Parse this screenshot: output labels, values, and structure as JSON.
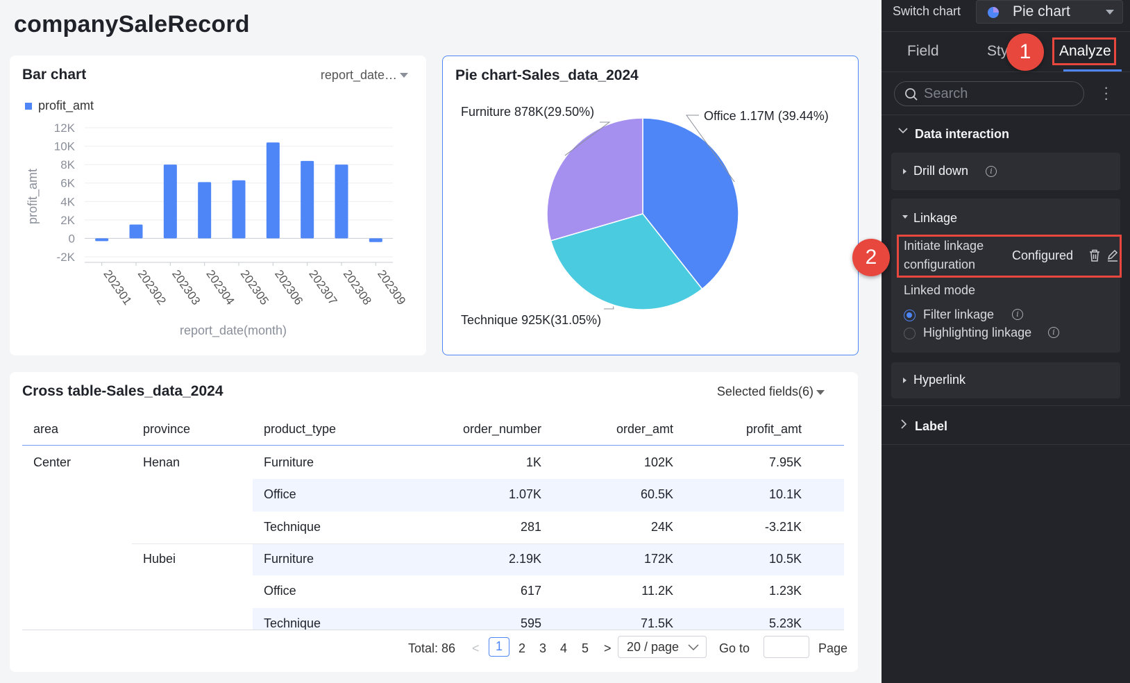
{
  "page": {
    "title": "companySaleRecord"
  },
  "bar_card": {
    "title": "Bar chart",
    "dimension_select": "report_date…",
    "legend": "profit_amt",
    "xlabel": "report_date(month)",
    "ylabel": "profit_amt"
  },
  "pie_card": {
    "title": "Pie chart-Sales_data_2024"
  },
  "chart_data": [
    {
      "type": "bar",
      "title": "Bar chart",
      "xlabel": "report_date(month)",
      "ylabel": "profit_amt",
      "categories": [
        "202301",
        "202302",
        "202303",
        "202304",
        "202305",
        "202306",
        "202307",
        "202308",
        "202309"
      ],
      "series": [
        {
          "name": "profit_amt",
          "values": [
            -300,
            1500,
            8000,
            6100,
            6300,
            10400,
            8400,
            8000,
            -400
          ]
        }
      ],
      "ylim": [
        -2000,
        12000
      ],
      "yticks": [
        12000,
        10000,
        8000,
        6000,
        4000,
        2000,
        0,
        -2000
      ],
      "ytick_labels": [
        "12K",
        "10K",
        "8K",
        "6K",
        "4K",
        "2K",
        "0",
        "-2K"
      ],
      "grid": true,
      "legend_position": "top-left"
    },
    {
      "type": "pie",
      "title": "Pie chart-Sales_data_2024",
      "slices": [
        {
          "label": "Office",
          "value": 1170000,
          "display": "Office 1.17M (39.44%)",
          "color": "#4e86f7"
        },
        {
          "label": "Technique",
          "value": 925000,
          "display": "Technique 925K(31.05%)",
          "color": "#4bcbe0"
        },
        {
          "label": "Furniture",
          "value": 878000,
          "display": "Furniture 878K(29.50%)",
          "color": "#a590f0"
        }
      ]
    }
  ],
  "table": {
    "title": "Cross table-Sales_data_2024",
    "field_select": "Selected fields(6)",
    "columns": [
      "area",
      "province",
      "product_type",
      "order_number",
      "order_amt",
      "profit_amt"
    ],
    "rows": [
      {
        "area": "Center",
        "province": "Henan",
        "product_type": "Furniture",
        "order_number": "1K",
        "order_amt": "102K",
        "profit_amt": "7.95K"
      },
      {
        "area": "",
        "province": "",
        "product_type": "Office",
        "order_number": "1.07K",
        "order_amt": "60.5K",
        "profit_amt": "10.1K"
      },
      {
        "area": "",
        "province": "",
        "product_type": "Technique",
        "order_number": "281",
        "order_amt": "24K",
        "profit_amt": "-3.21K"
      },
      {
        "area": "",
        "province": "Hubei",
        "product_type": "Furniture",
        "order_number": "2.19K",
        "order_amt": "172K",
        "profit_amt": "10.5K"
      },
      {
        "area": "",
        "province": "",
        "product_type": "Office",
        "order_number": "617",
        "order_amt": "11.2K",
        "profit_amt": "1.23K"
      },
      {
        "area": "",
        "province": "",
        "product_type": "Technique",
        "order_number": "595",
        "order_amt": "71.5K",
        "profit_amt": "5.23K"
      }
    ],
    "pagination": {
      "total": "Total: 86",
      "prev": "<",
      "pages": [
        "1",
        "2",
        "3",
        "4",
        "5"
      ],
      "current": "1",
      "next": ">",
      "page_size": "20 / page",
      "goto_label": "Go to",
      "page_label": "Page"
    }
  },
  "panel": {
    "switch_chart_label": "Switch chart",
    "chart_type": "Pie chart",
    "tabs": [
      "Field",
      "Sty",
      "Analyze"
    ],
    "active_tab": "Analyze",
    "search_placeholder": "Search",
    "badge_1": "1",
    "badge_2": "2",
    "data_interaction": "Data interaction",
    "drill_down": "Drill down",
    "linkage": "Linkage",
    "initiate_linkage_line1": "Initiate linkage",
    "initiate_linkage_line2": "configuration",
    "configured": "Configured",
    "linked_mode": "Linked mode",
    "filter_linkage": "Filter linkage",
    "highlighting_linkage": "Highlighting linkage",
    "linked_mode_selected": "Filter linkage",
    "hyperlink": "Hyperlink",
    "label": "Label"
  }
}
